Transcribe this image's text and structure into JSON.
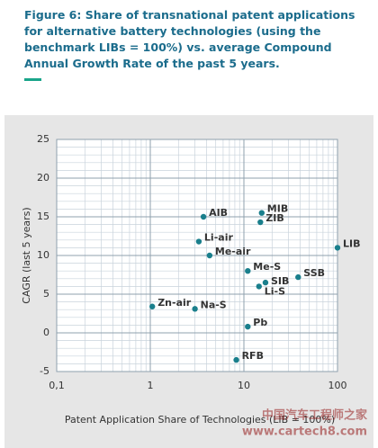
{
  "chart_data": {
    "type": "scatter",
    "title": "Figure 6: Share of transnational patent applications for alternative battery technologies (using the benchmark LIBs = 100%) vs. average Compound Annual Growth Rate of the past 5 years.",
    "x_label": "Patent Application Share of Technologies (LIB = 100%)",
    "y_label": "CAGR (last 5 years)",
    "x_scale": "log",
    "xlim": [
      0.1,
      100
    ],
    "xticks": [
      {
        "value": 0.1,
        "label": "0,1"
      },
      1,
      10,
      100
    ],
    "x_minor_ticks": [
      0.2,
      0.3,
      0.4,
      0.5,
      0.6,
      0.7,
      0.8,
      0.9,
      2,
      3,
      4,
      5,
      6,
      7,
      8,
      9,
      20,
      30,
      40,
      50,
      60,
      70,
      80,
      90
    ],
    "ylim": [
      -5,
      25
    ],
    "yticks": [
      -5,
      0,
      5,
      10,
      15,
      20,
      25
    ],
    "y_minor_ticks": [
      -4,
      -3,
      -2,
      -1,
      1,
      2,
      3,
      4,
      6,
      7,
      8,
      9,
      11,
      12,
      13,
      14,
      16,
      17,
      18,
      19,
      21,
      22,
      23,
      24
    ],
    "grid": true,
    "color": "#1a7f8c",
    "labels": [
      "AIB",
      "MIB",
      "ZIB",
      "Li-air",
      "Me-air",
      "LIB",
      "Me-S",
      "SSB",
      "SIB",
      "Li-S",
      "Zn-air",
      "Na-S",
      "Pb",
      "RFB"
    ],
    "x": [
      3.7,
      15.5,
      15,
      3.3,
      4.3,
      100,
      11,
      38,
      17,
      14.5,
      1.05,
      3,
      11,
      8.3
    ],
    "values": [
      15,
      15.5,
      14.3,
      11.8,
      10,
      11,
      8,
      7.2,
      6.5,
      6,
      3.4,
      3.1,
      0.8,
      -3.5
    ],
    "watermark": [
      "中国汽车工程师之家",
      "www.cartech8.com"
    ]
  }
}
